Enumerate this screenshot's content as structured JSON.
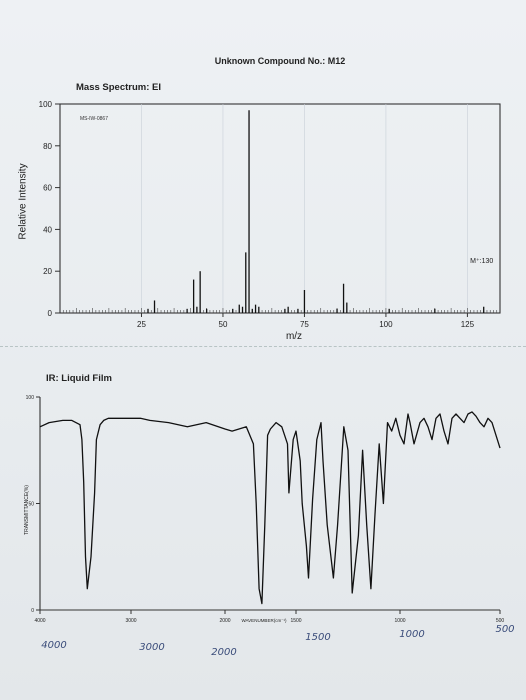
{
  "header": {
    "title": "Unknown Compound No.: M12"
  },
  "ms": {
    "subtitle": "Mass Spectrum: EI",
    "sample_code": "MS-IW-0867",
    "mol_ion_label": "M⁺:130"
  },
  "ir": {
    "subtitle": "IR: Liquid Film",
    "ylabel": "TRANSMITTANCE(%)",
    "inline_label": "WAVENUMBER(cm⁻¹)",
    "handwritten": [
      "4000",
      "3000",
      "2000",
      "1500",
      "1000",
      "500"
    ]
  },
  "chart_data": [
    {
      "type": "bar",
      "title": "Mass Spectrum: EI",
      "xlabel": "m/z",
      "ylabel": "Relative Intensity",
      "xlim": [
        0,
        135
      ],
      "ylim": [
        0,
        100
      ],
      "xticks": [
        25,
        50,
        75,
        100,
        125
      ],
      "yticks": [
        0,
        20,
        40,
        60,
        80,
        100
      ],
      "x": [
        27,
        29,
        39,
        41,
        42,
        43,
        45,
        53,
        55,
        56,
        57,
        58,
        59,
        60,
        61,
        69,
        70,
        73,
        75,
        85,
        87,
        88,
        101,
        115,
        130
      ],
      "y": [
        2,
        6,
        2,
        16,
        3,
        20,
        2,
        2,
        4,
        3,
        29,
        97,
        2,
        4,
        3,
        2,
        3,
        2,
        11,
        2,
        14,
        5,
        2,
        2,
        3
      ],
      "annotations": [
        "M⁺:130"
      ]
    },
    {
      "type": "line",
      "title": "IR: Liquid Film",
      "xlabel": "WAVENUMBER(cm⁻¹)",
      "ylabel": "TRANSMITTANCE(%)",
      "xlim": [
        4000,
        500
      ],
      "ylim": [
        0,
        100
      ],
      "xticks": [
        4000,
        3000,
        2000,
        1500,
        1000,
        500
      ],
      "yticks": [
        0,
        50,
        100
      ],
      "x": [
        4000,
        3900,
        3750,
        3650,
        3560,
        3540,
        3520,
        3500,
        3480,
        3440,
        3400,
        3380,
        3340,
        3300,
        3250,
        3100,
        3000,
        2900,
        2800,
        2600,
        2400,
        2200,
        2000,
        1950,
        1850,
        1800,
        1780,
        1760,
        1740,
        1720,
        1700,
        1680,
        1640,
        1600,
        1560,
        1550,
        1520,
        1500,
        1480,
        1470,
        1450,
        1440,
        1420,
        1400,
        1380,
        1370,
        1350,
        1320,
        1300,
        1270,
        1250,
        1230,
        1200,
        1180,
        1160,
        1140,
        1120,
        1100,
        1080,
        1060,
        1040,
        1020,
        1000,
        980,
        960,
        950,
        930,
        900,
        880,
        860,
        840,
        820,
        800,
        780,
        760,
        740,
        720,
        700,
        680,
        660,
        640,
        620,
        600,
        580,
        560,
        540,
        520,
        500
      ],
      "y": [
        86,
        88,
        89,
        89,
        87,
        80,
        60,
        25,
        10,
        25,
        55,
        80,
        87,
        89,
        90,
        90,
        90,
        90,
        89,
        88,
        86,
        88,
        85,
        84,
        86,
        78,
        50,
        10,
        3,
        40,
        82,
        85,
        88,
        86,
        78,
        55,
        80,
        84,
        70,
        50,
        30,
        15,
        52,
        80,
        88,
        70,
        40,
        15,
        40,
        86,
        75,
        8,
        35,
        75,
        40,
        10,
        45,
        78,
        50,
        88,
        84,
        90,
        82,
        78,
        92,
        88,
        78,
        88,
        90,
        86,
        80,
        90,
        92,
        84,
        78,
        90,
        92,
        90,
        88,
        92,
        93,
        91,
        88,
        86,
        90,
        88,
        82,
        76
      ]
    }
  ]
}
